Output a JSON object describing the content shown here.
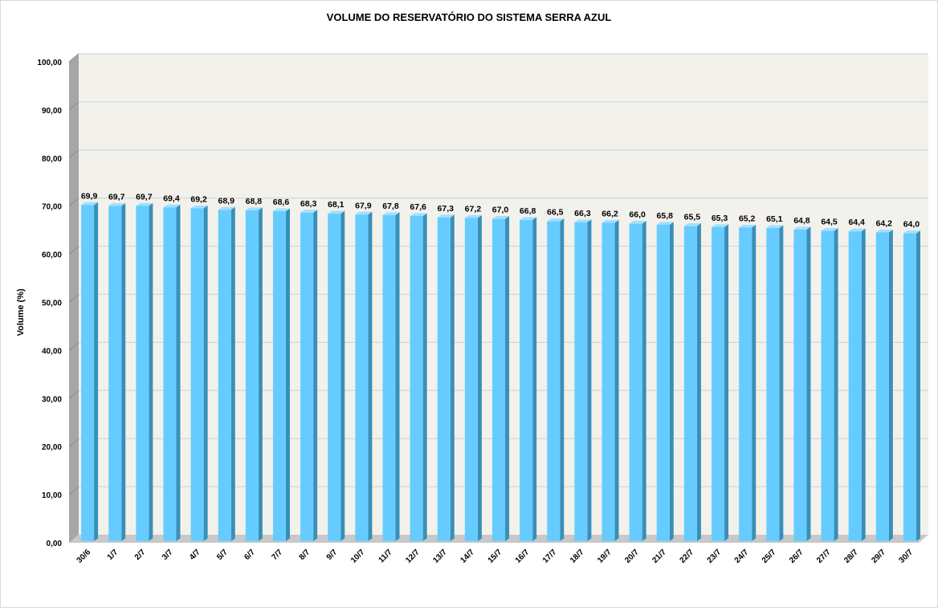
{
  "chart_data": {
    "type": "bar",
    "title": "VOLUME DO RESERVATÓRIO DO SISTEMA SERRA AZUL",
    "xlabel": "",
    "ylabel": "Volume (%)",
    "ylim": [
      0,
      100
    ],
    "yticks": [
      "0,00",
      "10,00",
      "20,00",
      "30,00",
      "40,00",
      "50,00",
      "60,00",
      "70,00",
      "80,00",
      "90,00",
      "100,00"
    ],
    "grid": true,
    "legend": "none",
    "categories": [
      "30/6",
      "1/7",
      "2/7",
      "3/7",
      "4/7",
      "5/7",
      "6/7",
      "7/7",
      "8/7",
      "9/7",
      "10/7",
      "11/7",
      "12/7",
      "13/7",
      "14/7",
      "15/7",
      "16/7",
      "17/7",
      "18/7",
      "19/7",
      "20/7",
      "21/7",
      "22/7",
      "23/7",
      "24/7",
      "25/7",
      "26/7",
      "27/7",
      "28/7",
      "29/7",
      "30/7"
    ],
    "values": [
      69.9,
      69.7,
      69.7,
      69.4,
      69.2,
      68.9,
      68.8,
      68.6,
      68.3,
      68.1,
      67.9,
      67.8,
      67.6,
      67.3,
      67.2,
      67.0,
      66.8,
      66.5,
      66.3,
      66.2,
      66.0,
      65.8,
      65.5,
      65.3,
      65.2,
      65.1,
      64.8,
      64.5,
      64.4,
      64.2,
      64.0
    ],
    "data_labels": [
      "69,9",
      "69,7",
      "69,7",
      "69,4",
      "69,2",
      "68,9",
      "68,8",
      "68,6",
      "68,3",
      "68,1",
      "67,9",
      "67,8",
      "67,6",
      "67,3",
      "67,2",
      "67,0",
      "66,8",
      "66,5",
      "66,3",
      "66,2",
      "66,0",
      "65,8",
      "65,5",
      "65,3",
      "65,2",
      "65,1",
      "64,8",
      "64,5",
      "64,4",
      "64,2",
      "64,0"
    ],
    "colors": {
      "bar_front": "#66ccff",
      "bar_side": "#3a8fb8",
      "bar_top": "#9fe0ff",
      "plot_back": "#f2f1ec",
      "side_wall": "#a6a6a6",
      "floor": "#c8c8c8",
      "gridline": "#d0d0d0"
    }
  }
}
